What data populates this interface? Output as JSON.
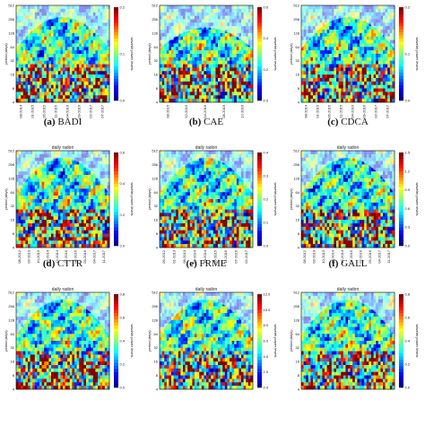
{
  "chart_data": [
    {
      "type": "heatmap",
      "caption_letter": "(a)",
      "caption_name": "BADI",
      "title": "",
      "ylabel": "period (days)",
      "colorbar_label": "wavelet power levels",
      "yticks": [
        "512",
        "256",
        "128",
        "64",
        "32",
        "16",
        "8",
        "4"
      ],
      "xticks": [
        "08-2014",
        "01-2015",
        "06-2015",
        "11-2015",
        "04-2016",
        "09-2016",
        "02-2017",
        "07-2017"
      ],
      "cbar_ticks": [
        "0.0",
        "0.1",
        "0.2"
      ],
      "coi_peak": 256,
      "seed": 11
    },
    {
      "type": "heatmap",
      "caption_letter": "(b)",
      "caption_name": "CAE",
      "title": "",
      "ylabel": "period (days)",
      "colorbar_label": "wavelet power levels",
      "yticks": [
        "512",
        "256",
        "128",
        "64",
        "32",
        "16",
        "8",
        "4"
      ],
      "xticks": [
        "08-2015",
        "12-2015",
        "04-2016",
        "08-2016",
        "12-2016"
      ],
      "cbar_ticks": [
        "0.0",
        "0.2",
        "0.4",
        "0.6"
      ],
      "coi_peak": 90,
      "seed": 23
    },
    {
      "type": "heatmap",
      "caption_letter": "(c)",
      "caption_name": "CDCA",
      "title": "",
      "ylabel": "period (days)",
      "colorbar_label": "wavelet power levels",
      "yticks": [
        "512",
        "256",
        "128",
        "64",
        "32",
        "16",
        "8",
        "4"
      ],
      "xticks": [
        "08-2014",
        "01-2015",
        "06-2015",
        "11-2015",
        "04-2016",
        "09-2016",
        "02-2017",
        "07-2017"
      ],
      "cbar_ticks": [
        "0.0",
        "0.1",
        "0.2"
      ],
      "coi_peak": 256,
      "seed": 37
    },
    {
      "type": "heatmap",
      "caption_letter": "(d)",
      "caption_name": "CTTR",
      "title": "daily radon",
      "ylabel": "period (days)",
      "colorbar_label": "wavelet power levels",
      "yticks": [
        "512",
        "256",
        "128",
        "64",
        "32",
        "16",
        "8",
        "4"
      ],
      "xticks": [
        "08-2012",
        "03-2013",
        "10-2013",
        "05-2014",
        "12-2014",
        "07-2015",
        "02-2016",
        "09-2016",
        "04-2017",
        "11-2017"
      ],
      "cbar_ticks": [
        "0.0",
        "0.2",
        "0.4",
        "0.6"
      ],
      "coi_peak": 400,
      "seed": 41
    },
    {
      "type": "heatmap",
      "caption_letter": "(e)",
      "caption_name": "FRME",
      "title": "daily radon",
      "ylabel": "period (days)",
      "colorbar_label": "wavelet power levels",
      "yticks": [
        "512",
        "256",
        "128",
        "64",
        "32",
        "16",
        "8",
        "4"
      ],
      "xticks": [
        "06-2012",
        "01-2013",
        "08-2013",
        "03-2014",
        "10-2014",
        "05-2015",
        "12-2015",
        "07-2016",
        "02-2017"
      ],
      "cbar_ticks": [
        "0.0",
        "0.1",
        "0.2",
        "0.3",
        "0.4"
      ],
      "coi_peak": 400,
      "seed": 53
    },
    {
      "type": "heatmap",
      "caption_letter": "(f)",
      "caption_name": "GALL",
      "title": "daily radon",
      "ylabel": "period (days)",
      "colorbar_label": "wavelet power levels",
      "yticks": [
        "512",
        "256",
        "128",
        "64",
        "32",
        "16",
        "8",
        "4"
      ],
      "xticks": [
        "08-2012",
        "03-2013",
        "10-2013",
        "05-2014",
        "12-2014",
        "07-2015",
        "02-2016",
        "09-2016",
        "04-2017",
        "11-2017"
      ],
      "cbar_ticks": [
        "0.0",
        "0.3",
        "0.6",
        "0.9",
        "1.2",
        "1.5"
      ],
      "coi_peak": 400,
      "seed": 67
    },
    {
      "type": "heatmap",
      "caption_letter": "",
      "caption_name": "",
      "title": "daily radon",
      "ylabel": "period (days)",
      "colorbar_label": "wavelet power levels",
      "yticks": [
        "512",
        "256",
        "128",
        "64",
        "32",
        "16",
        "8",
        "4"
      ],
      "xticks": [
        "",
        "",
        "",
        "",
        "",
        "",
        "",
        ""
      ],
      "cbar_ticks": [
        "0.0",
        "0.2",
        "0.4",
        "0.6",
        "0.8"
      ],
      "coi_peak": 400,
      "seed": 71
    },
    {
      "type": "heatmap",
      "caption_letter": "",
      "caption_name": "",
      "title": "daily radon",
      "ylabel": "period (days)",
      "colorbar_label": "wavelet power levels",
      "yticks": [
        "512",
        "256",
        "128",
        "64",
        "32",
        "16",
        "8",
        "4"
      ],
      "xticks": [
        "",
        "",
        "",
        "",
        "",
        "",
        "",
        ""
      ],
      "cbar_ticks": [
        "0.0",
        "2.0",
        "4.0",
        "6.0",
        "8.0",
        "10.0",
        "12.0"
      ],
      "coi_peak": 400,
      "seed": 83
    },
    {
      "type": "heatmap",
      "caption_letter": "",
      "caption_name": "",
      "title": "daily radon",
      "ylabel": "period (days)",
      "colorbar_label": "wavelet power levels",
      "yticks": [
        "512",
        "256",
        "128",
        "64",
        "32",
        "16",
        "8",
        "4"
      ],
      "xticks": [
        "",
        "",
        "",
        "",
        "",
        "",
        "",
        ""
      ],
      "cbar_ticks": [
        "0.0",
        "0.2",
        "0.4",
        "0.6",
        "0.8"
      ],
      "coi_peak": 400,
      "seed": 97
    }
  ],
  "colors": {
    "low": "#0b1a8c",
    "mid": "#2bd1c9",
    "high": "#c8141a",
    "coi": "#ffffff"
  }
}
